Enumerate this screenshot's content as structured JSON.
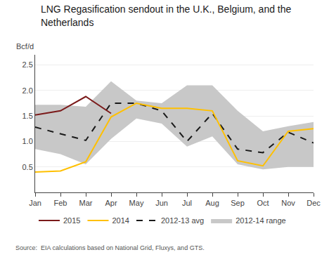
{
  "chart_data": {
    "type": "line",
    "title": "LNG Regasification sendout in the U.K., Belgium, and the\nNetherlands",
    "ylabel": "Bcf/d",
    "source": "Source:  EIA calculations based on National Grid, Fluxys, and GTS.",
    "categories": [
      "Jan",
      "Feb",
      "Mar",
      "Apr",
      "May",
      "Jun",
      "Jul",
      "Aug",
      "Sep",
      "Oct",
      "Nov",
      "Dec"
    ],
    "series": [
      {
        "name": "2012-14 range",
        "type": "range",
        "color": "#c8c8c8",
        "low": [
          0.85,
          0.75,
          0.55,
          1.05,
          1.45,
          1.35,
          0.9,
          1.1,
          0.55,
          0.45,
          0.5,
          0.5
        ],
        "high": [
          1.72,
          1.72,
          1.68,
          2.18,
          1.8,
          1.75,
          2.1,
          2.1,
          1.6,
          1.2,
          1.3,
          1.38
        ]
      },
      {
        "name": "2012-13 avg",
        "type": "line",
        "color": "#1a1a1a",
        "line_style": "dashed",
        "values": [
          1.28,
          1.15,
          1.02,
          1.75,
          1.75,
          1.6,
          1.0,
          1.55,
          0.85,
          0.78,
          1.18,
          0.97
        ]
      },
      {
        "name": "2014",
        "type": "line",
        "color": "#ffc000",
        "line_style": "solid",
        "values": [
          0.4,
          0.42,
          0.6,
          1.48,
          1.75,
          1.65,
          1.65,
          1.6,
          0.62,
          0.52,
          1.2,
          1.25
        ]
      },
      {
        "name": "2015",
        "type": "line",
        "color": "#7b1a1a",
        "line_style": "solid",
        "values": [
          1.52,
          1.6,
          1.88,
          1.55,
          null,
          null,
          null,
          null,
          null,
          null,
          null,
          null
        ]
      }
    ],
    "ylim": [
      0,
      2.7
    ],
    "yticks": [
      0.5,
      {
        "value": 1.0,
        "label": "1.0"
      },
      1.5,
      {
        "value": 2.0,
        "label": "2.0"
      },
      2.5
    ],
    "grid": true,
    "legend": "bottom"
  }
}
